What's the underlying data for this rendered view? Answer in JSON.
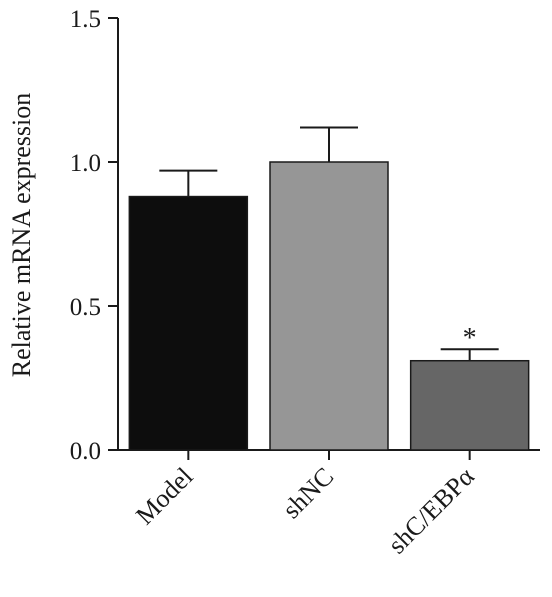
{
  "chart_data": {
    "type": "bar",
    "categories": [
      "Model",
      "shNC",
      "shC/EBPα"
    ],
    "values": [
      0.88,
      1.0,
      0.31
    ],
    "errors": [
      0.09,
      0.12,
      0.04
    ],
    "colors": [
      "#0d0d0d",
      "#969696",
      "#666666"
    ],
    "significance": [
      "",
      "",
      "*"
    ],
    "ylabel": "Relative mRNA expression",
    "xlabel": "",
    "ylim": [
      0,
      1.5
    ],
    "yticks": [
      0.0,
      0.5,
      1.0,
      1.5
    ],
    "ytick_labels": [
      "0.0",
      "0.5",
      "1.0",
      "1.5"
    ],
    "grid": false,
    "legend": "none"
  }
}
